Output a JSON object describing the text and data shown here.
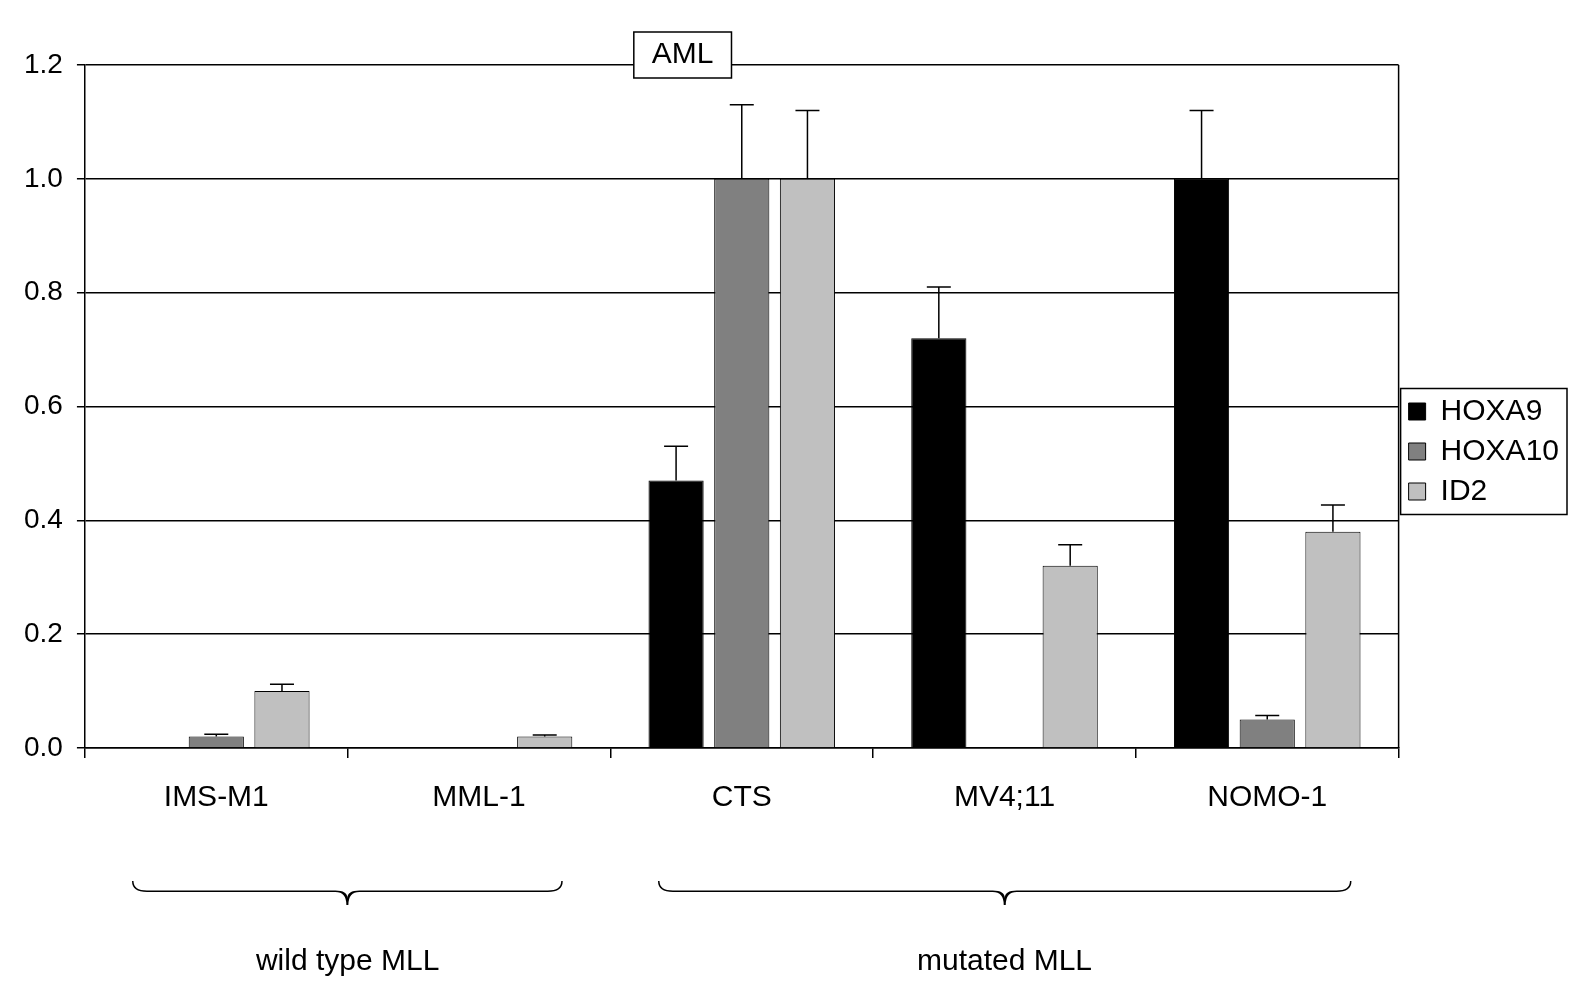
{
  "chart_data": {
    "type": "bar",
    "title": "AML",
    "categories": [
      "IMS-M1",
      "MML-1",
      "CTS",
      "MV4;11",
      "NOMO-1"
    ],
    "series": [
      {
        "name": "HOXA9",
        "color": "#000000",
        "values": [
          0,
          0,
          0.47,
          0.72,
          1.0
        ],
        "errors": [
          null,
          null,
          [
            0.47,
            0.53
          ],
          [
            0.72,
            0.81
          ],
          [
            1.0,
            1.12
          ]
        ]
      },
      {
        "name": "HOXA10",
        "color": "#808080",
        "values": [
          0.02,
          0,
          1.0,
          0,
          0.05
        ],
        "errors": [
          [
            0.02,
            0.024
          ],
          null,
          [
            1.0,
            1.13
          ],
          null,
          [
            0.05,
            0.057
          ]
        ]
      },
      {
        "name": "ID2",
        "color": "#c0c0c0",
        "values": [
          0.1,
          0.02,
          1.0,
          0.32,
          0.38
        ],
        "errors": [
          [
            0.1,
            0.112
          ],
          [
            0.02,
            0.023
          ],
          [
            1.0,
            1.12
          ],
          [
            0.32,
            0.357
          ],
          [
            0.38,
            0.427
          ]
        ]
      }
    ],
    "ylim": [
      0,
      1.2
    ],
    "yticks": [
      {
        "value": 0,
        "label": "0.0"
      },
      {
        "value": 0.2,
        "label": "0.2"
      },
      {
        "value": 0.4,
        "label": "0.4"
      },
      {
        "value": 0.6,
        "label": "0.6"
      },
      {
        "value": 0.8,
        "label": "0.8"
      },
      {
        "value": 1.0,
        "label": "1.0"
      },
      {
        "value": 1.2,
        "label": "1.2"
      }
    ],
    "grid": "y",
    "legend": "right",
    "annotations": [
      "wild type MLL",
      "mutated MLL"
    ]
  }
}
